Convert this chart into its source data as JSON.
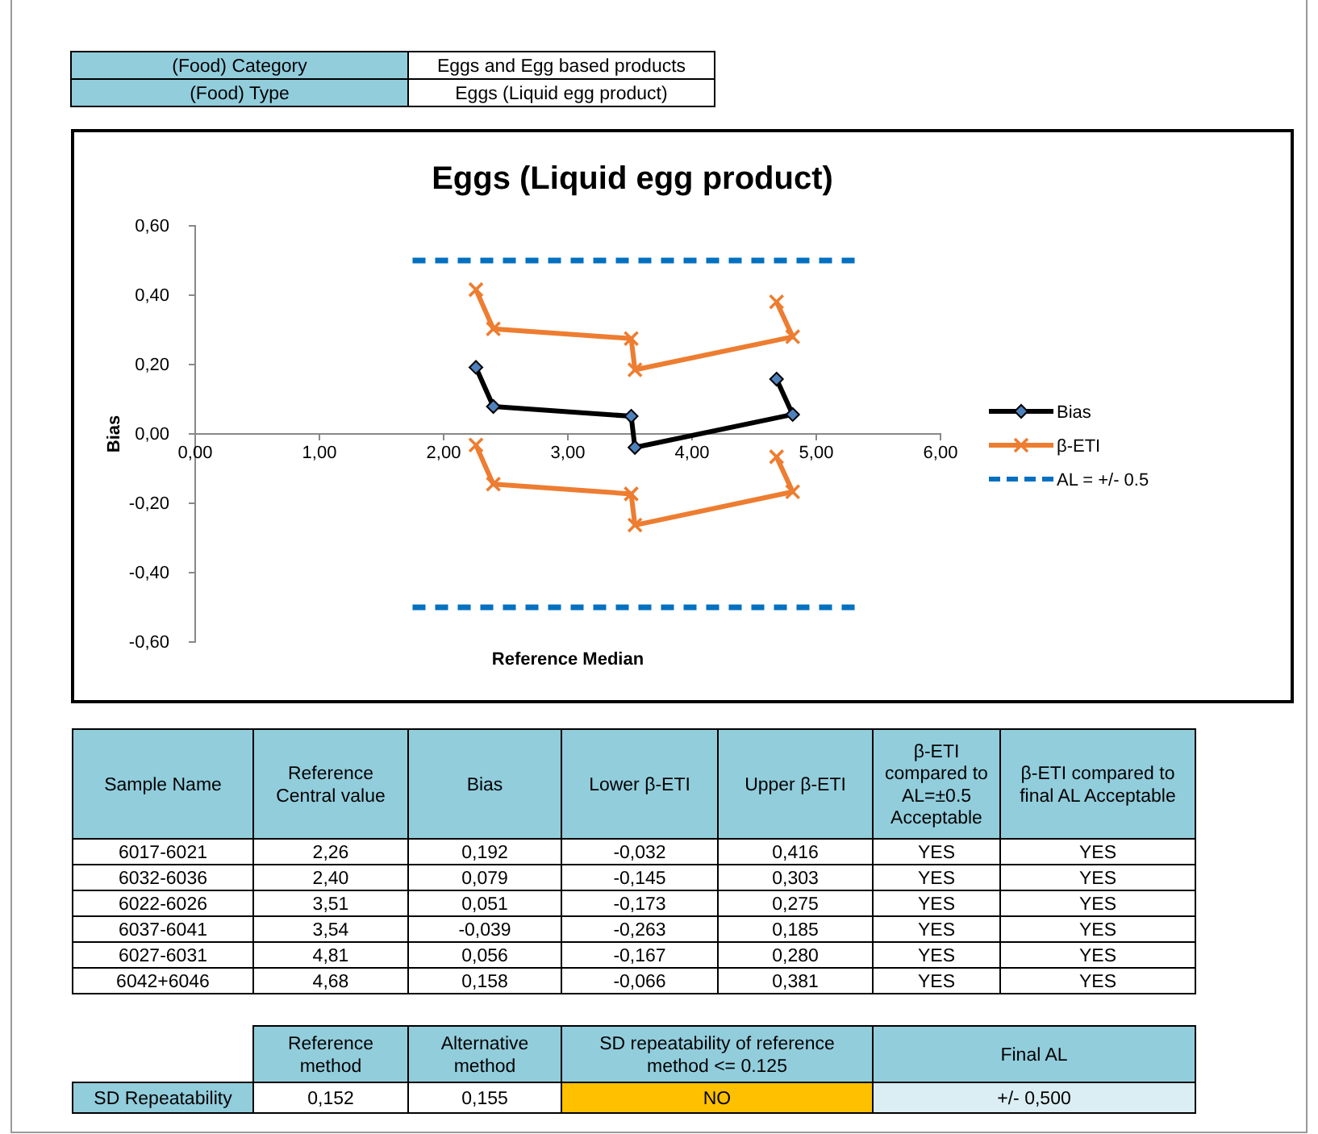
{
  "chart_data": [
    {
      "type": "other",
      "annotations": [
        "(Food) Category",
        "Eggs and Egg based products",
        "(Food) Type",
        "Eggs (Liquid egg product)"
      ]
    },
    {
      "type": "line",
      "title": "Eggs (Liquid egg product)",
      "xlabel": "Reference Median",
      "ylabel": "Bias",
      "xlim": [
        0,
        6
      ],
      "ylim": [
        -0.6,
        0.6
      ],
      "xticks": [
        {
          "value": 0,
          "label": "0,00"
        },
        {
          "value": 1,
          "label": "1,00"
        },
        {
          "value": 2,
          "label": "2,00"
        },
        {
          "value": 3,
          "label": "3,00"
        },
        {
          "value": 4,
          "label": "4,00"
        },
        {
          "value": 5,
          "label": "5,00"
        },
        {
          "value": 6,
          "label": "6,00"
        }
      ],
      "yticks": [
        {
          "value": -0.6,
          "label": "-0,60"
        },
        {
          "value": -0.4,
          "label": "-0,40"
        },
        {
          "value": -0.2,
          "label": "-0,20"
        },
        {
          "value": 0,
          "label": "0,00"
        },
        {
          "value": 0.2,
          "label": "0,20"
        },
        {
          "value": 0.4,
          "label": "0,40"
        },
        {
          "value": 0.6,
          "label": "0,60"
        }
      ],
      "grid": false,
      "legend": "right",
      "series": [
        {
          "name": "Bias",
          "color": "#000000",
          "marker": "diamond",
          "line_style": "solid",
          "x": [
            2.26,
            2.4,
            3.51,
            3.54,
            4.81,
            4.68
          ],
          "values": [
            0.192,
            0.079,
            0.051,
            -0.039,
            0.056,
            0.158
          ]
        },
        {
          "name": "β-ETI",
          "color": "#ed7d31",
          "marker": "cross",
          "line_style": "solid",
          "x": [
            2.26,
            2.4,
            3.51,
            3.54,
            4.81,
            4.68
          ],
          "values": [
            0.416,
            0.303,
            0.275,
            0.185,
            0.28,
            0.381
          ]
        },
        {
          "color": "#ed7d31",
          "marker": "cross",
          "line_style": "solid",
          "x": [
            2.26,
            2.4,
            3.51,
            3.54,
            4.81,
            4.68
          ],
          "values": [
            -0.032,
            -0.145,
            -0.173,
            -0.263,
            -0.167,
            -0.066
          ]
        },
        {
          "name": "AL = +/- 0.5",
          "color": "#0070c0",
          "marker": "none",
          "line_style": "dashed",
          "x": [
            1.75,
            5.35
          ],
          "values": [
            0.5,
            0.5
          ]
        },
        {
          "color": "#0070c0",
          "marker": "none",
          "line_style": "dashed",
          "x": [
            1.75,
            5.35
          ],
          "values": [
            -0.5,
            -0.5
          ]
        }
      ]
    },
    {
      "type": "other",
      "categories": [
        "Sample Name",
        "Reference Central value",
        "Bias",
        "Lower β-ETI",
        "Upper β-ETI",
        "β-ETI compared to AL=±0.5 Acceptable",
        "β-ETI compared to final AL Acceptable"
      ],
      "annotations": [
        "6017-6021",
        "2,26",
        "0,192",
        "-0,032",
        "0,416",
        "YES",
        "YES",
        "6032-6036",
        "2,40",
        "0,079",
        "-0,145",
        "0,303",
        "YES",
        "YES",
        "6022-6026",
        "3,51",
        "0,051",
        "-0,173",
        "0,275",
        "YES",
        "YES",
        "6037-6041",
        "3,54",
        "-0,039",
        "-0,263",
        "0,185",
        "YES",
        "YES",
        "6027-6031",
        "4,81",
        "0,056",
        "-0,167",
        "0,280",
        "YES",
        "YES",
        "6042+6046",
        "4,68",
        "0,158",
        "-0,066",
        "0,381",
        "YES",
        "YES"
      ]
    },
    {
      "type": "other",
      "categories": [
        null,
        "Reference method",
        "Alternative method",
        "SD repeatability of reference method <= 0.125",
        "Final AL"
      ],
      "annotations": [
        "SD Repeatability",
        "0,152",
        "0,155",
        "NO",
        "+/- 0,500"
      ]
    }
  ]
}
